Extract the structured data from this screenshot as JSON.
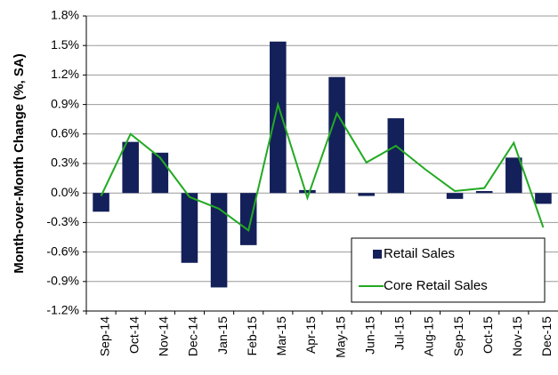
{
  "chart_data": {
    "type": "bar-line",
    "y_axis_label": "Month-over-Month Change (%, SA)",
    "categories": [
      "Sep-14",
      "Oct-14",
      "Nov-14",
      "Dec-14",
      "Jan-15",
      "Feb-15",
      "Mar-15",
      "Apr-15",
      "May-15",
      "Jun-15",
      "Jul-15",
      "Aug-15",
      "Sep-15",
      "Oct-15",
      "Nov-15",
      "Dec-15"
    ],
    "series": [
      {
        "name": "Retail Sales",
        "type": "bar",
        "color": "#14205a",
        "values": [
          -0.19,
          0.52,
          0.41,
          -0.71,
          -0.96,
          -0.53,
          1.54,
          0.03,
          1.18,
          -0.03,
          0.76,
          0.0,
          -0.06,
          0.02,
          0.36,
          -0.11
        ]
      },
      {
        "name": "Core Retail Sales",
        "type": "line",
        "color": "#22aa22",
        "values": [
          -0.03,
          0.6,
          0.36,
          -0.04,
          -0.16,
          -0.38,
          0.9,
          -0.05,
          0.81,
          0.31,
          0.48,
          0.24,
          0.02,
          0.05,
          0.51,
          -0.35
        ]
      }
    ],
    "ylim": [
      -1.2,
      1.8
    ],
    "yticks": [
      {
        "value": -1.2,
        "label": "-1.2%"
      },
      {
        "value": -0.9,
        "label": "-0.9%"
      },
      {
        "value": -0.6,
        "label": "-0.6%"
      },
      {
        "value": -0.3,
        "label": "-0.3%"
      },
      {
        "value": 0,
        "label": "0.0%"
      },
      {
        "value": 0.3,
        "label": "0.3%"
      },
      {
        "value": 0.6,
        "label": "0.6%"
      },
      {
        "value": 0.9,
        "label": "0.9%"
      },
      {
        "value": 1.2,
        "label": "1.2%"
      },
      {
        "value": 1.5,
        "label": "1.5%"
      },
      {
        "value": 1.8,
        "label": "1.8%"
      }
    ],
    "grid": true,
    "legend": "lower-right"
  }
}
